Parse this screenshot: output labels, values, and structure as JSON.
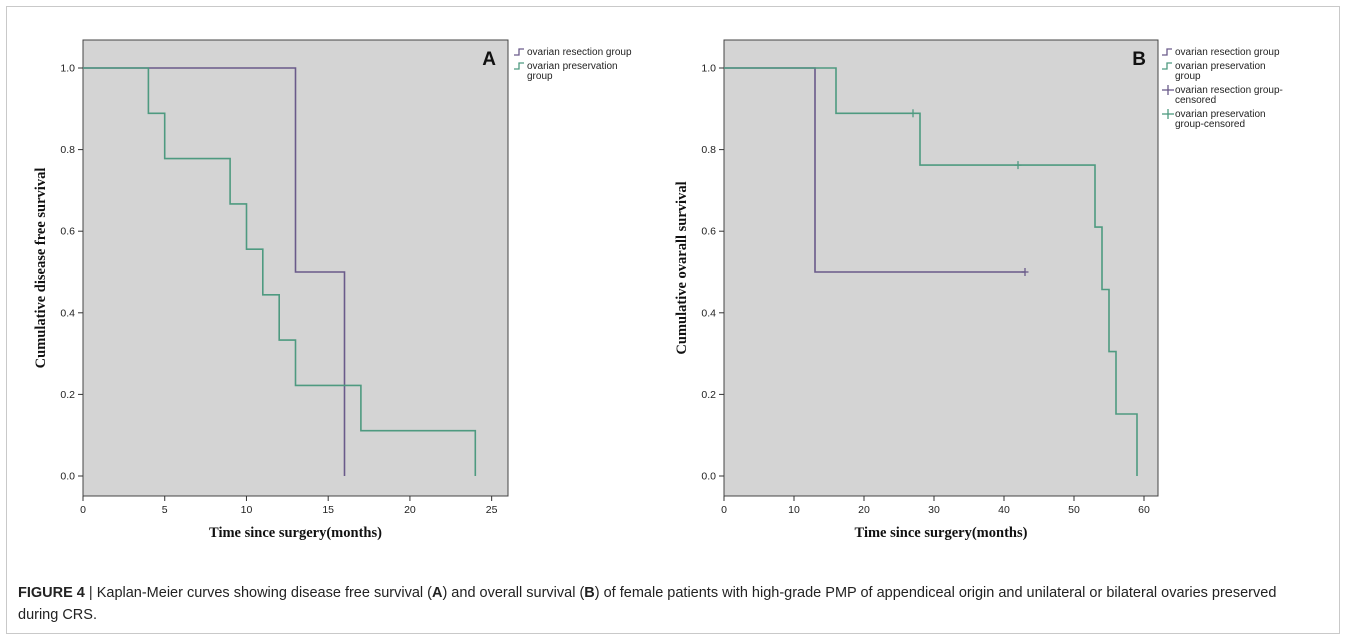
{
  "chart_data": [
    {
      "type": "line",
      "panel_label": "A",
      "xlabel": "Time since surgery(months)",
      "ylabel": "Cumulative disease free survival",
      "xlim": [
        0,
        26
      ],
      "ylim": [
        0,
        1.0
      ],
      "xticks": [
        "0",
        "5",
        "10",
        "15",
        "20",
        "25"
      ],
      "yticks": [
        "0.0",
        "0.2",
        "0.4",
        "0.6",
        "0.8",
        "1.0"
      ],
      "legend": [
        "ovarian resection group",
        "ovarian preservation group"
      ],
      "legend_position": "right",
      "series": [
        {
          "name": "ovarian resection group",
          "color": "#6a5a8a",
          "step": true,
          "points": [
            [
              0,
              1.0
            ],
            [
              13,
              1.0
            ],
            [
              13,
              0.5
            ],
            [
              16,
              0.5
            ],
            [
              16,
              0.0
            ]
          ]
        },
        {
          "name": "ovarian preservation group",
          "color": "#4e9a80",
          "step": true,
          "points": [
            [
              0,
              1.0
            ],
            [
              4,
              1.0
            ],
            [
              4,
              0.889
            ],
            [
              5,
              0.889
            ],
            [
              5,
              0.778
            ],
            [
              9,
              0.778
            ],
            [
              9,
              0.667
            ],
            [
              10,
              0.667
            ],
            [
              10,
              0.556
            ],
            [
              11,
              0.556
            ],
            [
              11,
              0.444
            ],
            [
              12,
              0.444
            ],
            [
              12,
              0.333
            ],
            [
              13,
              0.333
            ],
            [
              13,
              0.222
            ],
            [
              17,
              0.222
            ],
            [
              17,
              0.111
            ],
            [
              24,
              0.111
            ],
            [
              24,
              0.0
            ]
          ]
        }
      ],
      "censored": []
    },
    {
      "type": "line",
      "panel_label": "B",
      "xlabel": "Time since surgery(months)",
      "ylabel": "Cumulative ovarall survival",
      "xlim": [
        0,
        62
      ],
      "ylim": [
        0,
        1.0
      ],
      "xticks": [
        "0",
        "10",
        "20",
        "30",
        "40",
        "50",
        "60"
      ],
      "yticks": [
        "0.0",
        "0.2",
        "0.4",
        "0.6",
        "0.8",
        "1.0"
      ],
      "legend": [
        "ovarian resection group",
        "ovarian preservation group",
        "ovarian resection group-censored",
        "ovarian preservation group-censored"
      ],
      "legend_position": "right",
      "series": [
        {
          "name": "ovarian resection group",
          "color": "#6a5a8a",
          "step": true,
          "points": [
            [
              0,
              1.0
            ],
            [
              13,
              1.0
            ],
            [
              13,
              0.5
            ],
            [
              43,
              0.5
            ]
          ]
        },
        {
          "name": "ovarian preservation group",
          "color": "#4e9a80",
          "step": true,
          "points": [
            [
              0,
              1.0
            ],
            [
              16,
              1.0
            ],
            [
              16,
              0.889
            ],
            [
              28,
              0.889
            ],
            [
              28,
              0.762
            ],
            [
              53,
              0.762
            ],
            [
              53,
              0.61
            ],
            [
              54,
              0.61
            ],
            [
              54,
              0.457
            ],
            [
              55,
              0.457
            ],
            [
              55,
              0.305
            ],
            [
              56,
              0.305
            ],
            [
              56,
              0.152
            ],
            [
              59,
              0.152
            ],
            [
              59,
              0.0
            ]
          ]
        }
      ],
      "censored": [
        {
          "series": "ovarian resection group",
          "color": "#6a5a8a",
          "points": [
            [
              43,
              0.5
            ]
          ]
        },
        {
          "series": "ovarian preservation group",
          "color": "#4e9a80",
          "points": [
            [
              27,
              0.889
            ],
            [
              42,
              0.762
            ]
          ]
        }
      ]
    }
  ],
  "caption": {
    "figure_label": "FIGURE 4",
    "separator": " | ",
    "part1": "Kaplan-Meier curves showing disease free survival (",
    "ref_a": "A",
    "part2": ") and overall survival (",
    "ref_b": "B",
    "part3": ") of female patients with high-grade PMP of appendiceal origin and unilateral or bilateral ovaries preserved during CRS."
  },
  "colors": {
    "plot_background": "#d4d4d4",
    "resection": "#6a5a8a",
    "preservation": "#4e9a80"
  }
}
